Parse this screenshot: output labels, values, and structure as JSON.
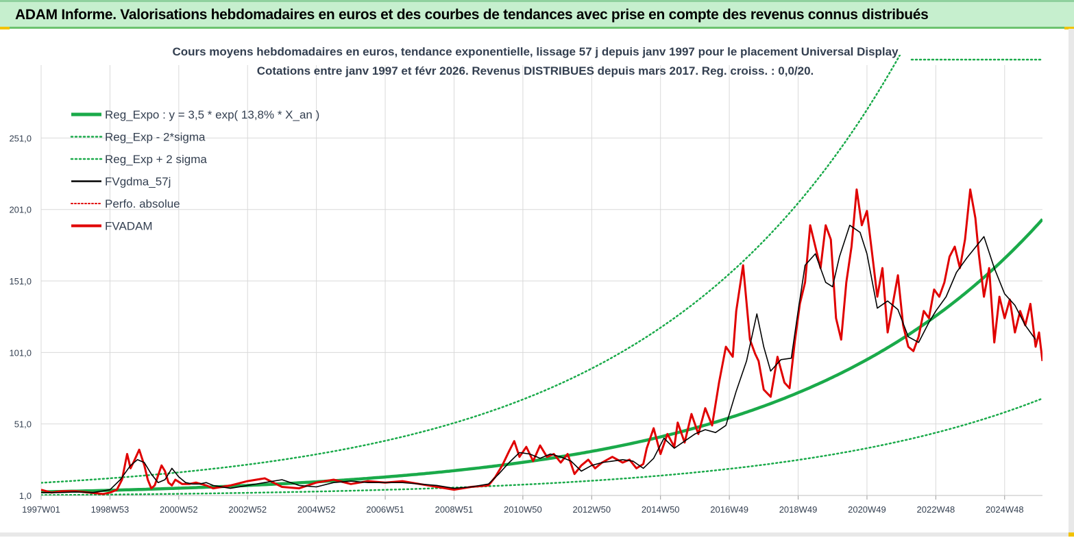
{
  "header": {
    "title": "ADAM Informe. Valorisations hebdomadaires en euros et des courbes de tendances avec prise en compte des revenus connus distribués"
  },
  "chart_data": {
    "type": "line",
    "title": "Cours moyens hebdomadaires en euros, tendance exponentielle, lissage 57 j depuis janv 1997 pour le placement Universal Display",
    "subtitle": "Cotations entre janv 1997 et févr 2026. Revenus DISTRIBUES depuis mars 2017. Reg. croiss. : 0,0/20.",
    "xlabel": "",
    "ylabel": "",
    "x_range": [
      1997.0,
      2026.1
    ],
    "ylim": [
      1,
      290
    ],
    "y_ticks": [
      1,
      51,
      101,
      151,
      201,
      251
    ],
    "y_tick_labels": [
      "1,0",
      "51,0",
      "101,0",
      "151,0",
      "201,0",
      "251,0"
    ],
    "x_ticks": [
      1997.0,
      1999.0,
      2001.0,
      2003.0,
      2005.0,
      2007.0,
      2009.0,
      2011.0,
      2013.0,
      2015.0,
      2017.0,
      2019.0,
      2021.0,
      2023.0,
      2025.0
    ],
    "x_tick_labels": [
      "1997W01",
      "1998W53",
      "2000W52",
      "2002W52",
      "2004W52",
      "2006W51",
      "2008W51",
      "2010W50",
      "2012W50",
      "2014W50",
      "2016W49",
      "2018W49",
      "2020W49",
      "2022W48",
      "2024W48"
    ],
    "grid": true,
    "legend_position": "top-left",
    "colors": {
      "reg_expo": "#1aaa4a",
      "sigma": "#1aaa4a",
      "fvgdma": "#000000",
      "perfo": "#e00000",
      "fvadam": "#e00000",
      "grid": "#d9d9d9",
      "text": "#333f50"
    },
    "regression": {
      "a": 3.5,
      "rate": 0.138,
      "sigma_factor": 2.82
    },
    "series": [
      {
        "name": "Reg_Expo : y = 3,5 * exp( 13,8% *  X_an )",
        "style": "thick-solid",
        "formula": "3.5*exp(0.138*(x-1997))"
      },
      {
        "name": "Reg_Exp - 2*sigma",
        "style": "dotted",
        "formula": "3.5*exp(0.138*(x-1997))/2.82"
      },
      {
        "name": "Reg_Exp + 2 sigma",
        "style": "dotted",
        "formula": "3.5*exp(0.138*(x-1997))*2.82"
      },
      {
        "name": "FVgdma_57j",
        "style": "thin-solid",
        "x": [
          1997.0,
          1997.5,
          1998.0,
          1998.5,
          1999.0,
          1999.3,
          1999.6,
          1999.8,
          2000.0,
          2000.2,
          2000.4,
          2000.6,
          2000.8,
          2001.0,
          2001.2,
          2001.4,
          2001.6,
          2001.8,
          2002.0,
          2002.5,
          2003.0,
          2003.5,
          2004.0,
          2004.5,
          2005.0,
          2005.5,
          2006.0,
          2006.5,
          2007.0,
          2007.5,
          2008.0,
          2008.5,
          2009.0,
          2009.5,
          2010.0,
          2010.3,
          2010.6,
          2010.9,
          2011.2,
          2011.5,
          2011.8,
          2012.1,
          2012.4,
          2012.7,
          2013.0,
          2013.3,
          2013.6,
          2013.9,
          2014.2,
          2014.5,
          2014.8,
          2015.1,
          2015.4,
          2015.7,
          2016.0,
          2016.3,
          2016.6,
          2016.9,
          2017.2,
          2017.5,
          2017.8,
          2018.0,
          2018.2,
          2018.5,
          2018.8,
          2019.0,
          2019.2,
          2019.5,
          2019.8,
          2020.0,
          2020.2,
          2020.5,
          2020.8,
          2021.0,
          2021.3,
          2021.6,
          2021.9,
          2022.2,
          2022.5,
          2022.8,
          2023.0,
          2023.3,
          2023.6,
          2023.9,
          2024.2,
          2024.4,
          2024.7,
          2025.0,
          2025.3,
          2025.6,
          2025.9
        ],
        "values": [
          3,
          3,
          3.5,
          3,
          5,
          12,
          22,
          26,
          24,
          16,
          10,
          12,
          20,
          14,
          10,
          9,
          9,
          10,
          8,
          6,
          8,
          10,
          12,
          8,
          7,
          10,
          11,
          10,
          10,
          10,
          9,
          8,
          6,
          7,
          9,
          16,
          24,
          31,
          30,
          27,
          30,
          28,
          25,
          18,
          22,
          24,
          25,
          26,
          25,
          20,
          27,
          41,
          34,
          39,
          44,
          47,
          45,
          50,
          74,
          95,
          128,
          105,
          88,
          96,
          97,
          130,
          162,
          170,
          150,
          147,
          168,
          190,
          185,
          170,
          132,
          137,
          131,
          112,
          108,
          122,
          130,
          140,
          157,
          167,
          176,
          182,
          160,
          142,
          134,
          120,
          110
        ]
      },
      {
        "name": "Perfo. absolue",
        "style": "dotted",
        "hidden_in_plot": true
      },
      {
        "name": "FVADAM",
        "style": "thick-solid",
        "x": [
          1997.0,
          1997.3,
          1997.6,
          1998.0,
          1998.4,
          1998.8,
          1999.0,
          1999.2,
          1999.35,
          1999.5,
          1999.6,
          1999.7,
          1999.85,
          2000.0,
          2000.1,
          2000.2,
          2000.3,
          2000.4,
          2000.5,
          2000.6,
          2000.7,
          2000.8,
          2000.9,
          2001.1,
          2001.3,
          2001.5,
          2001.8,
          2002.0,
          2002.5,
          2003.0,
          2003.5,
          2004.0,
          2004.5,
          2005.0,
          2005.5,
          2006.0,
          2006.5,
          2007.0,
          2007.5,
          2008.0,
          2008.5,
          2009.0,
          2009.5,
          2010.0,
          2010.2,
          2010.4,
          2010.6,
          2010.75,
          2010.9,
          2011.1,
          2011.3,
          2011.5,
          2011.7,
          2011.9,
          2012.1,
          2012.3,
          2012.5,
          2012.7,
          2012.9,
          2013.1,
          2013.3,
          2013.6,
          2013.9,
          2014.1,
          2014.3,
          2014.5,
          2014.6,
          2014.8,
          2015.0,
          2015.2,
          2015.4,
          2015.5,
          2015.7,
          2015.9,
          2016.1,
          2016.3,
          2016.5,
          2016.7,
          2016.9,
          2017.1,
          2017.2,
          2017.4,
          2017.6,
          2017.75,
          2017.85,
          2018.0,
          2018.2,
          2018.4,
          2018.6,
          2018.75,
          2018.9,
          2019.05,
          2019.2,
          2019.35,
          2019.5,
          2019.65,
          2019.8,
          2019.95,
          2020.1,
          2020.25,
          2020.4,
          2020.55,
          2020.7,
          2020.85,
          2021.0,
          2021.15,
          2021.3,
          2021.45,
          2021.6,
          2021.75,
          2021.9,
          2022.05,
          2022.2,
          2022.35,
          2022.5,
          2022.65,
          2022.8,
          2022.95,
          2023.1,
          2023.25,
          2023.4,
          2023.55,
          2023.7,
          2023.85,
          2024.0,
          2024.15,
          2024.25,
          2024.4,
          2024.55,
          2024.7,
          2024.85,
          2025.0,
          2025.15,
          2025.3,
          2025.45,
          2025.6,
          2025.75,
          2025.9,
          2026.0,
          2026.1
        ],
        "values": [
          5,
          3,
          4,
          4,
          3,
          2,
          3,
          5,
          12,
          30,
          20,
          25,
          33,
          22,
          12,
          6,
          8,
          15,
          22,
          18,
          10,
          8,
          12,
          9,
          9,
          10,
          8,
          6,
          8,
          11,
          13,
          7,
          6,
          10,
          12,
          9,
          11,
          10,
          11,
          9,
          7,
          5,
          7,
          8,
          14,
          22,
          32,
          39,
          28,
          35,
          25,
          36,
          28,
          30,
          24,
          30,
          16,
          22,
          26,
          20,
          24,
          28,
          24,
          26,
          20,
          23,
          34,
          48,
          30,
          44,
          35,
          52,
          38,
          58,
          44,
          62,
          50,
          80,
          105,
          98,
          130,
          162,
          110,
          100,
          95,
          75,
          70,
          98,
          80,
          76,
          108,
          135,
          150,
          190,
          175,
          160,
          190,
          180,
          125,
          110,
          150,
          175,
          215,
          190,
          200,
          170,
          140,
          160,
          115,
          135,
          155,
          120,
          105,
          102,
          112,
          130,
          125,
          145,
          140,
          150,
          168,
          175,
          160,
          180,
          215,
          195,
          170,
          140,
          160,
          108,
          140,
          125,
          138,
          115,
          130,
          120,
          135,
          105,
          115,
          95
        ]
      }
    ]
  }
}
